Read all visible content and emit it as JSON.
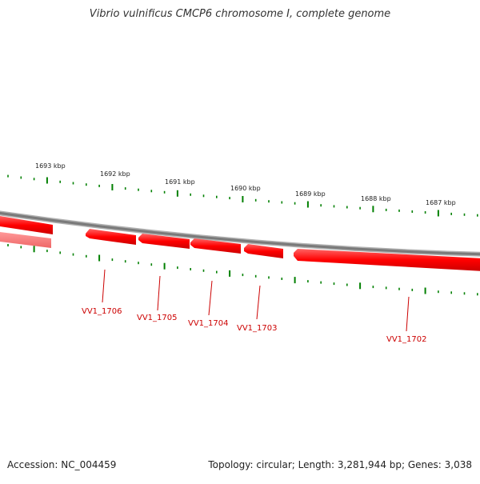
{
  "title": "Vibrio vulnificus CMCP6 chromosome I, complete genome",
  "footer": {
    "accession": "Accession: NC_004459",
    "summary": "Topology: circular; Length: 3,281,944 bp; Genes: 3,038"
  },
  "kbp_labels": [
    "1693 kbp",
    "1692 kbp",
    "1691 kbp",
    "1690 kbp",
    "1689 kbp",
    "1688 kbp",
    "1687 kbp"
  ],
  "gene_labels": [
    "VV1_1706",
    "VV1_1705",
    "VV1_1704",
    "VV1_1703",
    "VV1_1702"
  ],
  "colors": {
    "gene": "#ff0000",
    "gene_label": "#cc0000",
    "tick": "#008000",
    "backbone": "#808080"
  }
}
